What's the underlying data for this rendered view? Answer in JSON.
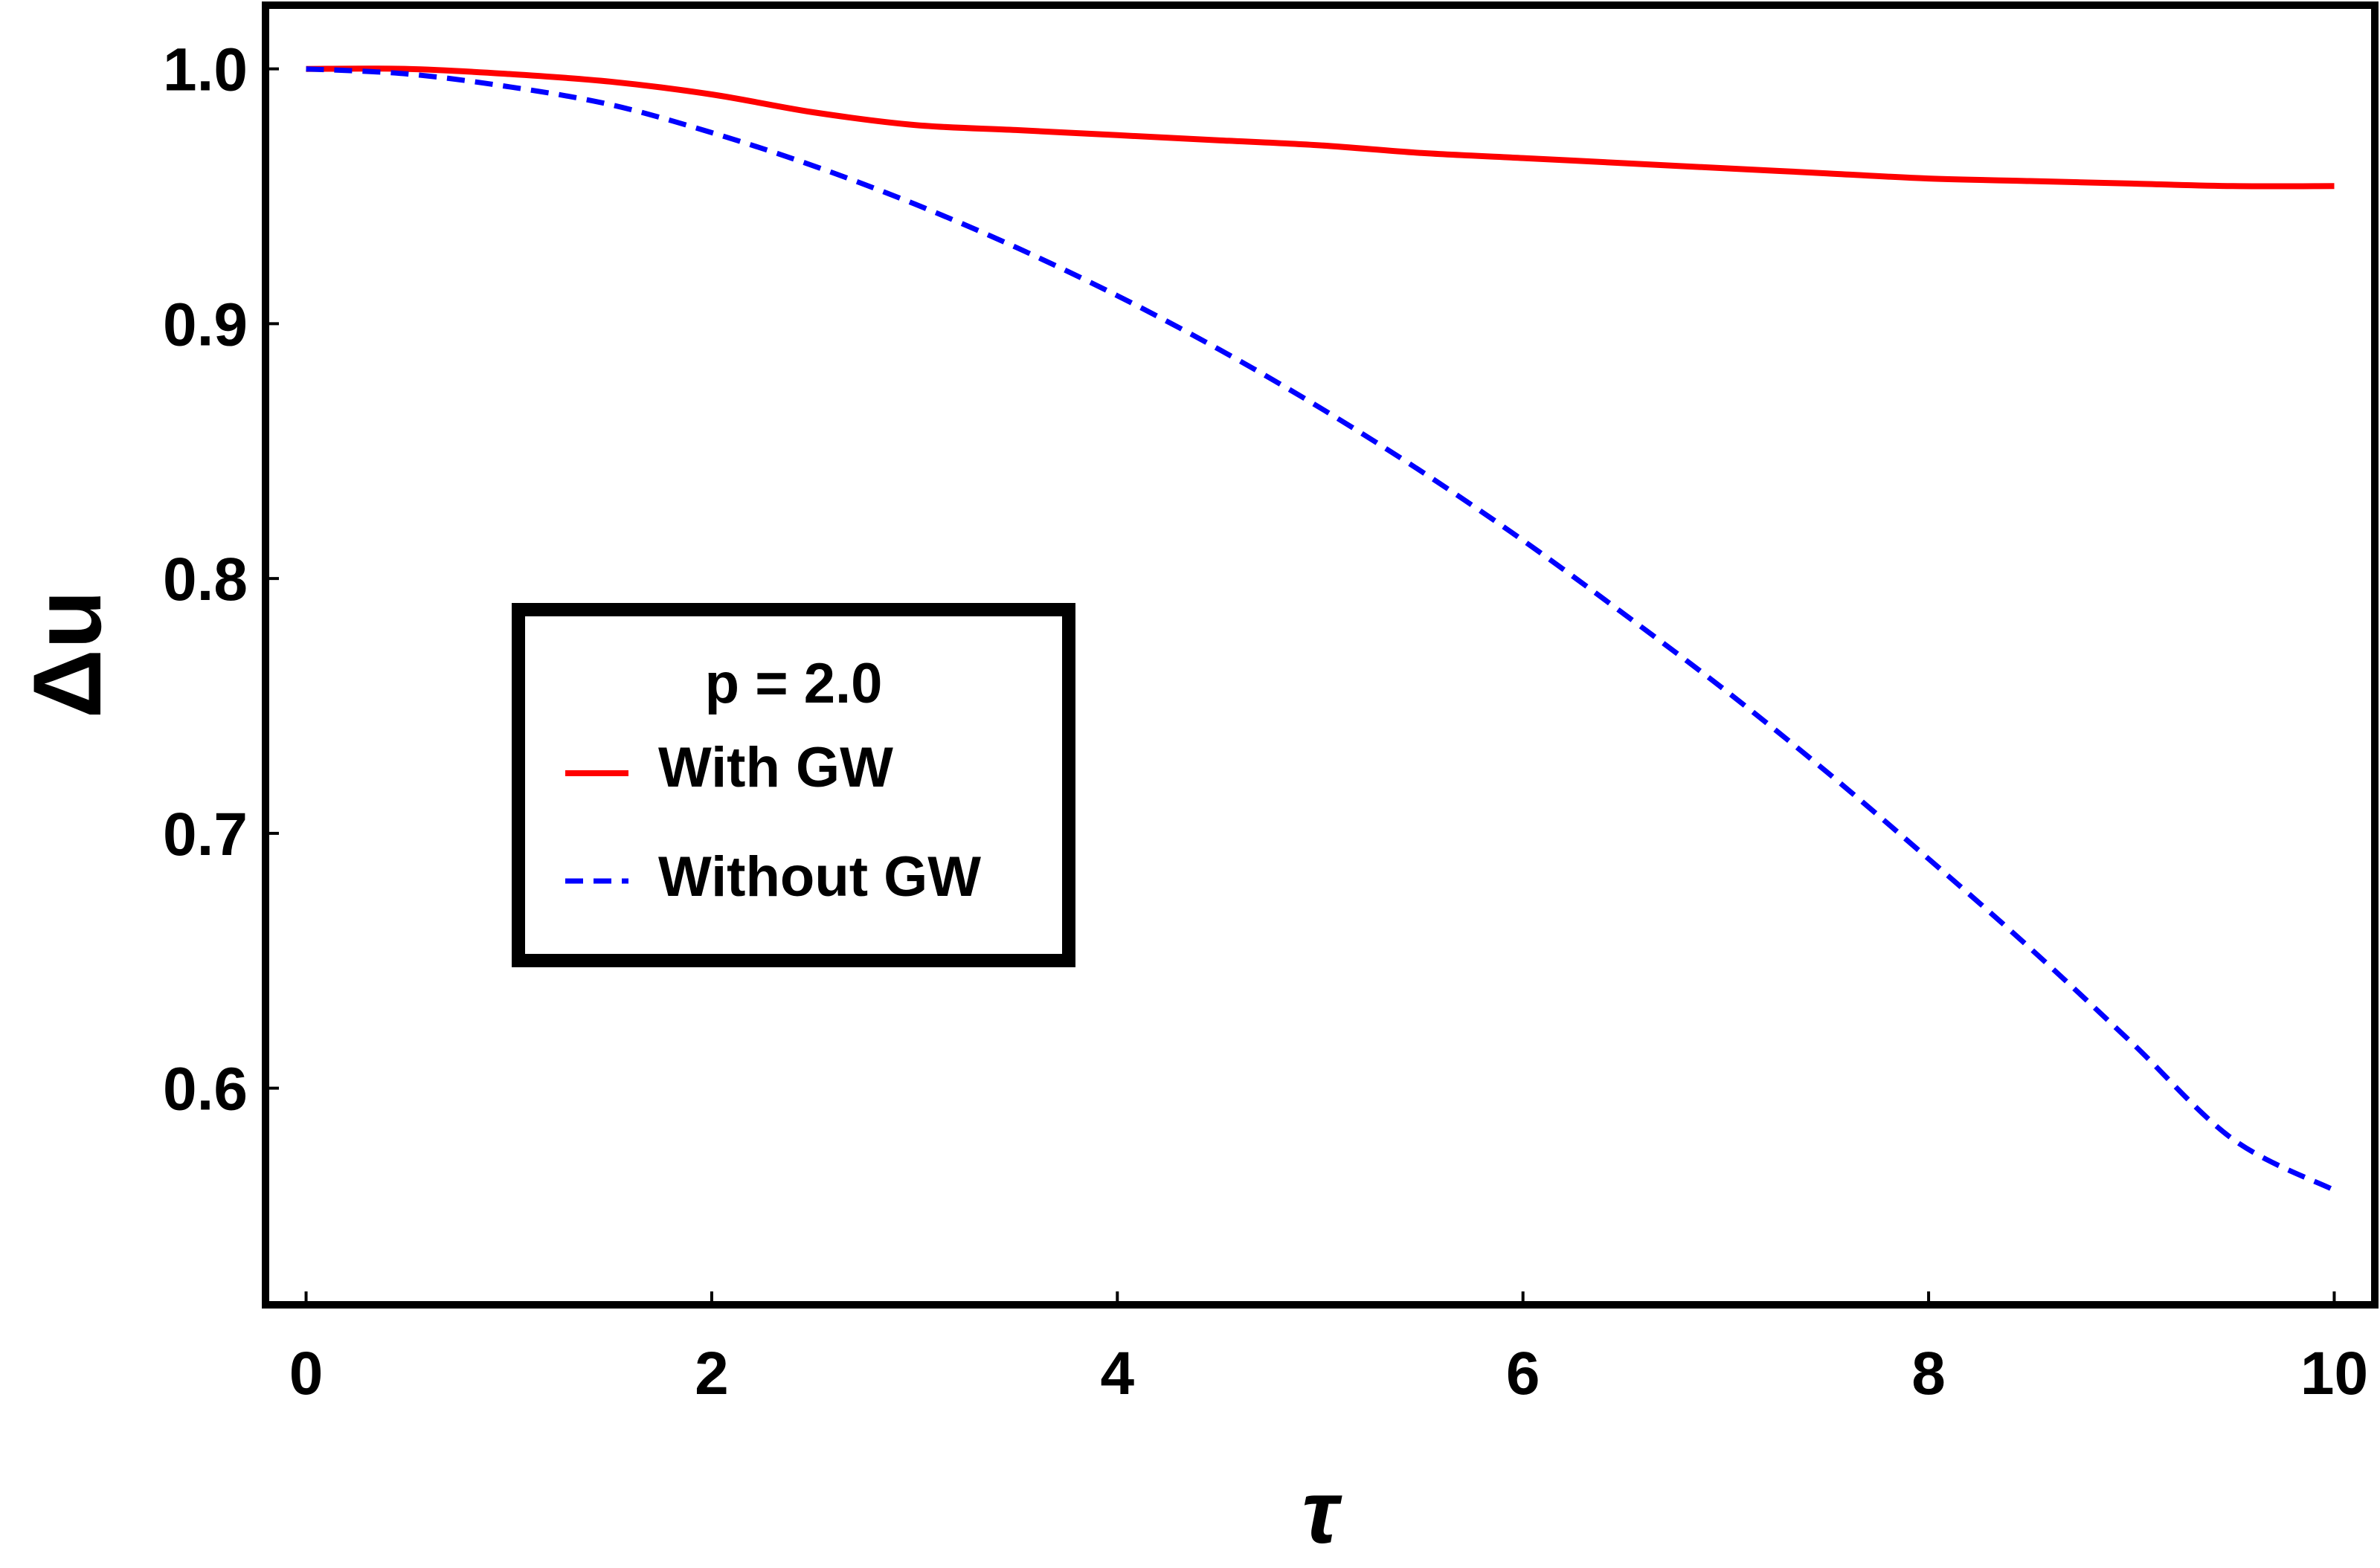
{
  "chart_data": {
    "type": "line",
    "xlabel": "τ",
    "ylabel": "Δu",
    "xlim": [
      -0.2,
      10.2
    ],
    "ylim": [
      0.515,
      1.025
    ],
    "grid": false,
    "x_ticks": [
      0,
      2,
      4,
      6,
      8,
      10
    ],
    "y_ticks": [
      0.6,
      0.7,
      0.8,
      0.9,
      1.0
    ],
    "x_tick_labels": [
      "0",
      "2",
      "4",
      "6",
      "8",
      "10"
    ],
    "y_tick_labels": [
      "0.6",
      "0.7",
      "0.8",
      "0.9",
      "1.0"
    ],
    "legend": {
      "placement": "center-left",
      "title": "p = 2.0",
      "entries": [
        "With GW",
        "Without GW"
      ]
    },
    "series": [
      {
        "name": "With GW",
        "color": "#ff0000",
        "dash": "solid",
        "x": [
          0,
          0.5,
          1,
          1.5,
          2,
          2.5,
          3,
          3.5,
          4,
          4.5,
          5,
          5.5,
          6,
          6.5,
          7,
          7.5,
          8,
          8.5,
          9,
          9.5,
          10
        ],
        "y": [
          1.0,
          1.0,
          0.998,
          0.995,
          0.99,
          0.983,
          0.978,
          0.976,
          0.974,
          0.972,
          0.97,
          0.967,
          0.965,
          0.963,
          0.961,
          0.959,
          0.957,
          0.956,
          0.955,
          0.954,
          0.954
        ]
      },
      {
        "name": "Without GW",
        "color": "#0000ff",
        "dash": "dashed",
        "x": [
          0,
          0.5,
          1,
          1.5,
          2,
          2.5,
          3,
          3.5,
          4,
          4.5,
          5,
          5.5,
          6,
          6.5,
          7,
          7.5,
          8,
          8.5,
          9,
          9.5,
          10
        ],
        "y": [
          1.0,
          0.998,
          0.993,
          0.986,
          0.975,
          0.962,
          0.947,
          0.93,
          0.911,
          0.89,
          0.867,
          0.842,
          0.815,
          0.786,
          0.756,
          0.724,
          0.69,
          0.655,
          0.618,
          0.58,
          0.56
        ]
      }
    ]
  }
}
